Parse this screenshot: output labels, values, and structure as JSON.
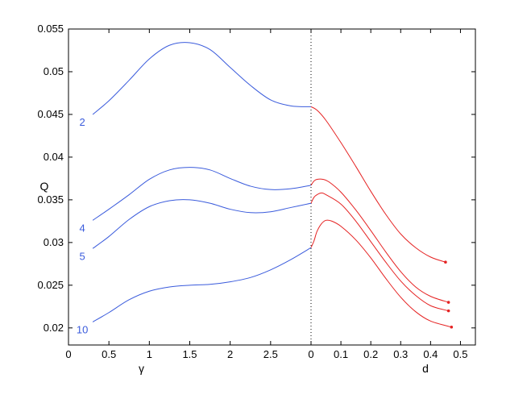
{
  "chart_data": {
    "type": "line",
    "title": "",
    "ylabel": "Q",
    "ylim": [
      0.018,
      0.055
    ],
    "y_ticks": [
      0.02,
      0.025,
      0.03,
      0.035,
      0.04,
      0.045,
      0.05,
      0.055
    ],
    "y_tick_labels": [
      "0.02",
      "0.025",
      "0.03",
      "0.035",
      "0.04",
      "0.045",
      "0.05",
      "0.055"
    ],
    "grid": false,
    "panels": [
      {
        "xlabel": "γ",
        "xlim": [
          0,
          3
        ],
        "x_ticks": [
          0,
          0.5,
          1,
          1.5,
          2,
          2.5
        ],
        "x_tick_labels": [
          "0",
          "0.5",
          "1",
          "1.5",
          "2",
          "2.5"
        ]
      },
      {
        "xlabel": "d",
        "xlim": [
          0,
          0.55
        ],
        "x_ticks": [
          0,
          0.1,
          0.2,
          0.3,
          0.4,
          0.5
        ],
        "x_tick_labels": [
          "0",
          "0.1",
          "0.2",
          "0.3",
          "0.4",
          "0.5"
        ]
      }
    ],
    "divider_style": "dotted",
    "colors": {
      "gamma_series": "#3a5bdc",
      "d_series": "#e52222"
    },
    "series": [
      {
        "name": "2",
        "gamma": {
          "x": [
            0.3,
            0.5,
            0.75,
            1.0,
            1.25,
            1.5,
            1.75,
            2.0,
            2.25,
            2.5,
            2.75,
            3.0
          ],
          "y": [
            0.045,
            0.0466,
            0.049,
            0.0515,
            0.0531,
            0.0534,
            0.0526,
            0.0505,
            0.0484,
            0.0467,
            0.046,
            0.0459
          ]
        },
        "d": {
          "x": [
            0.0,
            0.02,
            0.05,
            0.1,
            0.15,
            0.2,
            0.25,
            0.3,
            0.35,
            0.4,
            0.45
          ],
          "y": [
            0.0459,
            0.0455,
            0.0443,
            0.0417,
            0.0389,
            0.036,
            0.0333,
            0.031,
            0.0294,
            0.0283,
            0.0277
          ]
        }
      },
      {
        "name": "4",
        "gamma": {
          "x": [
            0.3,
            0.5,
            0.75,
            1.0,
            1.25,
            1.5,
            1.75,
            2.0,
            2.25,
            2.5,
            2.75,
            3.0
          ],
          "y": [
            0.0326,
            0.0339,
            0.0356,
            0.0374,
            0.0385,
            0.0388,
            0.0385,
            0.0375,
            0.0366,
            0.0362,
            0.0363,
            0.0367
          ]
        },
        "d": {
          "x": [
            0.0,
            0.01,
            0.02,
            0.04,
            0.06,
            0.1,
            0.15,
            0.2,
            0.25,
            0.3,
            0.35,
            0.4,
            0.46
          ],
          "y": [
            0.0367,
            0.0372,
            0.0374,
            0.0374,
            0.0371,
            0.0359,
            0.0338,
            0.0314,
            0.0289,
            0.0266,
            0.0248,
            0.0237,
            0.023
          ]
        }
      },
      {
        "name": "5",
        "gamma": {
          "x": [
            0.3,
            0.5,
            0.75,
            1.0,
            1.25,
            1.5,
            1.75,
            2.0,
            2.25,
            2.5,
            2.75,
            3.0
          ],
          "y": [
            0.0293,
            0.0307,
            0.0327,
            0.0342,
            0.0349,
            0.035,
            0.0346,
            0.0339,
            0.0335,
            0.0336,
            0.0341,
            0.0346
          ]
        },
        "d": {
          "x": [
            0.0,
            0.01,
            0.02,
            0.035,
            0.05,
            0.1,
            0.15,
            0.2,
            0.25,
            0.3,
            0.35,
            0.4,
            0.46
          ],
          "y": [
            0.0346,
            0.0353,
            0.0356,
            0.0358,
            0.0356,
            0.0345,
            0.0325,
            0.0301,
            0.0277,
            0.0255,
            0.0238,
            0.0226,
            0.022
          ]
        }
      },
      {
        "name": "10",
        "gamma": {
          "x": [
            0.3,
            0.5,
            0.75,
            1.0,
            1.25,
            1.5,
            1.75,
            2.0,
            2.25,
            2.5,
            2.75,
            3.0
          ],
          "y": [
            0.0207,
            0.0218,
            0.0233,
            0.0243,
            0.0248,
            0.025,
            0.0251,
            0.0254,
            0.0259,
            0.0268,
            0.028,
            0.0294
          ]
        },
        "d": {
          "x": [
            0.0,
            0.01,
            0.02,
            0.035,
            0.05,
            0.07,
            0.1,
            0.15,
            0.2,
            0.25,
            0.3,
            0.35,
            0.4,
            0.47
          ],
          "y": [
            0.0294,
            0.0302,
            0.0313,
            0.0322,
            0.0326,
            0.0325,
            0.0319,
            0.0303,
            0.0282,
            0.0258,
            0.0236,
            0.0219,
            0.0208,
            0.0201
          ]
        }
      }
    ]
  }
}
